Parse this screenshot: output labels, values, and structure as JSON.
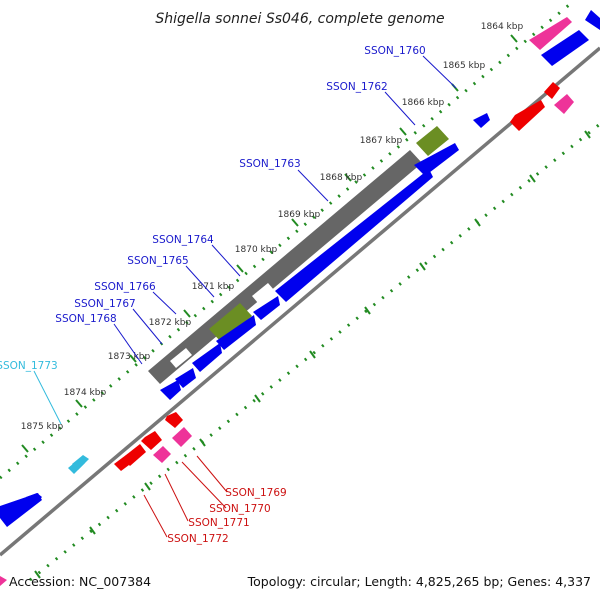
{
  "title": "Shigella sonnei Ss046, complete genome",
  "accession": "Accession: NC_007384",
  "topology_summary": "Topology: circular; Length: 4,825,265 bp; Genes: 4,337",
  "colors": {
    "backbone": "#777777",
    "tick": "#228b22",
    "forward_cds": "#0000ee",
    "reverse_cds": "#ee0000",
    "reverse_cds_light": "#ee3399",
    "forward_block": "#666666",
    "forward_block_highlight": "#6b8e23",
    "forward_cds_highlight": "#ee3399",
    "label_forward": "#1a1acc",
    "label_reverse": "#cc1111",
    "label_trna": "#33bbdd"
  },
  "kbp_labels": [
    "1864 kbp",
    "1865 kbp",
    "1866 kbp",
    "1867 kbp",
    "1868 kbp",
    "1869 kbp",
    "1870 kbp",
    "1871 kbp",
    "1872 kbp",
    "1873 kbp",
    "1874 kbp",
    "1875 kbp"
  ],
  "gene_labels": [
    {
      "name": "SSON_1760",
      "strand": "forward"
    },
    {
      "name": "SSON_1762",
      "strand": "forward"
    },
    {
      "name": "SSON_1763",
      "strand": "forward"
    },
    {
      "name": "SSON_1764",
      "strand": "forward"
    },
    {
      "name": "SSON_1765",
      "strand": "forward"
    },
    {
      "name": "SSON_1766",
      "strand": "forward"
    },
    {
      "name": "SSON_1767",
      "strand": "forward"
    },
    {
      "name": "SSON_1768",
      "strand": "forward"
    },
    {
      "name": "SSON_1773",
      "strand": "trna"
    },
    {
      "name": "SSON_1769",
      "strand": "reverse"
    },
    {
      "name": "SSON_1770",
      "strand": "reverse"
    },
    {
      "name": "SSON_1771",
      "strand": "reverse"
    },
    {
      "name": "SSON_1772",
      "strand": "reverse"
    }
  ]
}
